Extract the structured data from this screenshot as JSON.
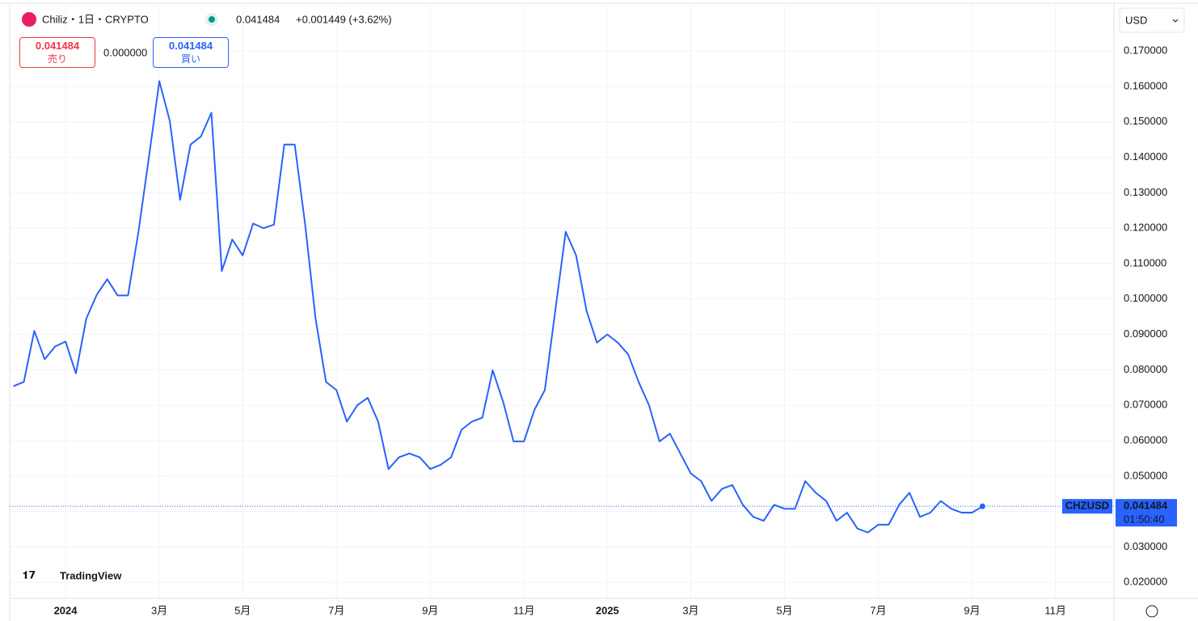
{
  "ui": {
    "symbol": "Chiliz・1日・CRYPTO",
    "header_price": "0.041484",
    "header_change": "+0.001449 (+3.62%)",
    "sell_price": "0.041484",
    "sell_label": "売り",
    "spread": "0.000000",
    "buy_price": "0.041484",
    "buy_label": "買い",
    "currency": "USD",
    "logo": "TradingView",
    "ticker": "CHZUSD",
    "countdown": "01:50:40"
  },
  "chart_data": {
    "type": "line",
    "color": "#2962ff",
    "grid": true,
    "last_price": 0.041484,
    "categories": [
      null,
      null,
      null,
      null,
      null,
      "2024",
      null,
      null,
      null,
      null,
      null,
      null,
      null,
      null,
      "3月",
      null,
      null,
      null,
      null,
      null,
      null,
      null,
      "5月",
      null,
      null,
      null,
      null,
      null,
      null,
      null,
      null,
      "7月",
      null,
      null,
      null,
      null,
      null,
      null,
      null,
      null,
      "9月",
      null,
      null,
      null,
      null,
      null,
      null,
      null,
      null,
      "11月",
      null,
      null,
      null,
      null,
      null,
      null,
      null,
      "2025",
      null,
      null,
      null,
      null,
      null,
      null,
      null,
      "3月",
      null,
      null,
      null,
      null,
      null,
      null,
      null,
      null,
      "5月",
      null,
      null,
      null,
      null,
      null,
      null,
      null,
      null,
      "7月",
      null,
      null,
      null,
      null,
      null,
      null,
      null,
      null,
      "9月",
      null,
      null,
      null,
      null,
      null,
      null,
      null,
      "11月",
      null,
      null,
      null,
      null,
      null
    ],
    "series": [
      {
        "name": "CHZUSD",
        "color": "#2962ff",
        "values": [
          0.0754,
          0.0766,
          0.091,
          0.083,
          0.0866,
          0.088,
          0.079,
          0.0945,
          0.1012,
          0.1056,
          0.101,
          0.101,
          0.119,
          0.14,
          0.1615,
          0.1503,
          0.128,
          0.1436,
          0.1459,
          0.1526,
          0.1079,
          0.1168,
          0.1123,
          0.1213,
          0.12,
          0.121,
          0.1436,
          0.1436,
          0.121,
          0.0944,
          0.0766,
          0.0743,
          0.0654,
          0.07,
          0.0721,
          0.0654,
          0.052,
          0.0553,
          0.0564,
          0.0553,
          0.052,
          0.0532,
          0.0553,
          0.0631,
          0.0654,
          0.0665,
          0.0799,
          0.071,
          0.0598,
          0.0598,
          0.0687,
          0.0743,
          0.0967,
          0.119,
          0.1123,
          0.0967,
          0.0877,
          0.09,
          0.0877,
          0.0844,
          0.0766,
          0.07,
          0.0598,
          0.062,
          0.0564,
          0.0508,
          0.0486,
          0.043,
          0.0464,
          0.0475,
          0.0419,
          0.0385,
          0.0374,
          0.0419,
          0.0408,
          0.0408,
          0.0486,
          0.0453,
          0.043,
          0.0374,
          0.0397,
          0.0352,
          0.0341,
          0.0363,
          0.0363,
          0.0419,
          0.0453,
          0.0385,
          0.0397,
          0.043,
          0.0408,
          0.0397,
          0.0397,
          0.041484,
          null,
          null,
          null,
          null,
          null,
          null,
          null,
          null,
          null,
          null,
          null,
          null
        ]
      }
    ],
    "ylim": [
      0.0155,
      0.1835
    ],
    "yticks": [
      {
        "value": 0.02,
        "label": "0.020000"
      },
      {
        "value": 0.03,
        "label": "0.030000"
      },
      {
        "value": 0.04,
        "label": "0.040000"
      },
      {
        "value": 0.05,
        "label": "0.050000"
      },
      {
        "value": 0.06,
        "label": "0.060000"
      },
      {
        "value": 0.07,
        "label": "0.070000"
      },
      {
        "value": 0.08,
        "label": "0.080000"
      },
      {
        "value": 0.09,
        "label": "0.090000"
      },
      {
        "value": 0.1,
        "label": "0.100000"
      },
      {
        "value": 0.11,
        "label": "0.110000"
      },
      {
        "value": 0.12,
        "label": "0.120000"
      },
      {
        "value": 0.13,
        "label": "0.130000"
      },
      {
        "value": 0.14,
        "label": "0.140000"
      },
      {
        "value": 0.15,
        "label": "0.150000"
      },
      {
        "value": 0.16,
        "label": "0.160000"
      },
      {
        "value": 0.17,
        "label": "0.170000"
      }
    ]
  }
}
